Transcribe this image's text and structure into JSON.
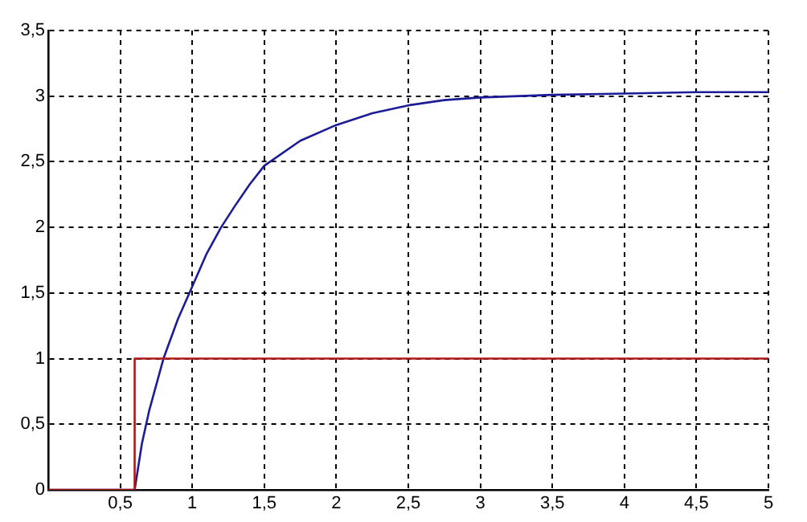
{
  "chart_data": {
    "type": "line",
    "xlim": [
      0,
      5
    ],
    "ylim": [
      0,
      3.5
    ],
    "xticks": [
      {
        "value": 0,
        "label": null
      },
      {
        "value": 0.5,
        "label": "0,5"
      },
      1,
      {
        "value": 1.5,
        "label": "1,5"
      },
      2,
      {
        "value": 2.5,
        "label": "2,5"
      },
      3,
      {
        "value": 3.5,
        "label": "3,5"
      },
      4,
      {
        "value": 4.5,
        "label": "4,5"
      },
      5
    ],
    "yticks": [
      0,
      {
        "value": 0.5,
        "label": "0,5"
      },
      1,
      {
        "value": 1.5,
        "label": "1,5"
      },
      2,
      {
        "value": 2.5,
        "label": "2,5"
      },
      3,
      {
        "value": 3.5,
        "label": "3,5"
      }
    ],
    "grid": true,
    "legend": false,
    "marker": "none",
    "line_style": "solid",
    "series": [
      {
        "type": "step",
        "color": "#b01818",
        "x": [
          0,
          0.6,
          5
        ],
        "values": [
          0,
          1,
          1
        ]
      },
      {
        "type": "line",
        "color": "#1c1c96",
        "x": [
          0,
          0.6,
          0.65,
          0.7,
          0.8,
          0.9,
          1,
          1.1,
          1.2,
          1.3,
          1.4,
          1.5,
          1.75,
          2,
          2.25,
          2.5,
          2.75,
          3,
          3.5,
          4,
          4.5,
          5
        ],
        "values": [
          0,
          0,
          0.35,
          0.6,
          1.0,
          1.3,
          1.55,
          1.8,
          2.0,
          2.17,
          2.33,
          2.47,
          2.66,
          2.78,
          2.87,
          2.93,
          2.97,
          2.99,
          3.01,
          3.02,
          3.03,
          3.03
        ]
      }
    ]
  }
}
